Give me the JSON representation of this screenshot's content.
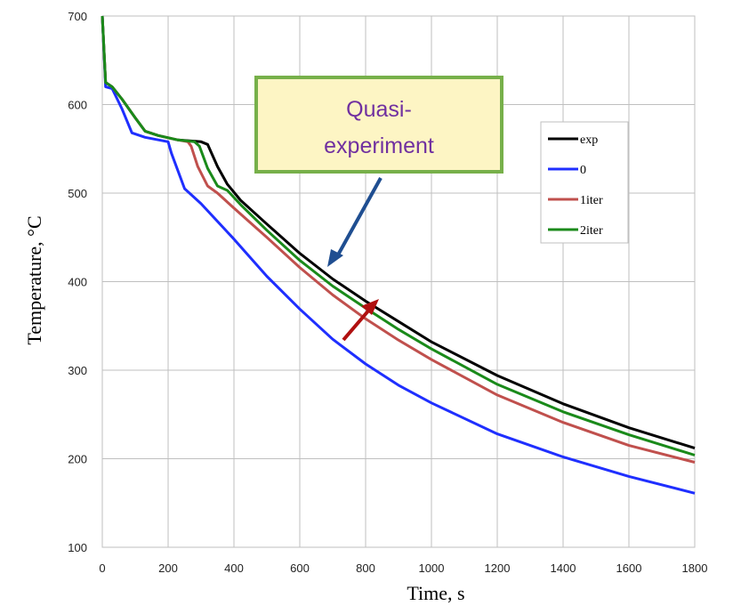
{
  "chart_data": {
    "type": "line",
    "xlabel": "Time, s",
    "ylabel": "Temperature,  °C",
    "xlim": [
      0,
      1800
    ],
    "ylim": [
      100,
      700
    ],
    "xticks": [
      0,
      200,
      400,
      600,
      800,
      1000,
      1200,
      1400,
      1600,
      1800
    ],
    "yticks": [
      100,
      200,
      300,
      400,
      500,
      600,
      700
    ],
    "grid": true,
    "legend_position": "right",
    "series": [
      {
        "name": "exp",
        "color": "#000000",
        "points": [
          [
            0,
            700
          ],
          [
            10,
            625
          ],
          [
            30,
            620
          ],
          [
            60,
            606
          ],
          [
            100,
            585
          ],
          [
            130,
            570
          ],
          [
            170,
            565
          ],
          [
            230,
            560
          ],
          [
            300,
            558
          ],
          [
            320,
            555
          ],
          [
            350,
            530
          ],
          [
            380,
            510
          ],
          [
            420,
            492
          ],
          [
            500,
            465
          ],
          [
            600,
            432
          ],
          [
            700,
            403
          ],
          [
            800,
            378
          ],
          [
            900,
            355
          ],
          [
            1000,
            332
          ],
          [
            1200,
            294
          ],
          [
            1400,
            262
          ],
          [
            1600,
            235
          ],
          [
            1800,
            212
          ]
        ]
      },
      {
        "name": "0",
        "color": "#1f2fff",
        "points": [
          [
            0,
            700
          ],
          [
            10,
            620
          ],
          [
            30,
            618
          ],
          [
            60,
            595
          ],
          [
            90,
            568
          ],
          [
            130,
            563
          ],
          [
            200,
            558
          ],
          [
            210,
            545
          ],
          [
            250,
            505
          ],
          [
            300,
            488
          ],
          [
            400,
            448
          ],
          [
            500,
            406
          ],
          [
            600,
            369
          ],
          [
            700,
            335
          ],
          [
            800,
            307
          ],
          [
            900,
            283
          ],
          [
            1000,
            263
          ],
          [
            1200,
            228
          ],
          [
            1400,
            202
          ],
          [
            1600,
            180
          ],
          [
            1800,
            161
          ]
        ]
      },
      {
        "name": "1iter",
        "color": "#c0504d",
        "points": [
          [
            0,
            700
          ],
          [
            10,
            625
          ],
          [
            30,
            620
          ],
          [
            60,
            606
          ],
          [
            100,
            585
          ],
          [
            130,
            570
          ],
          [
            170,
            565
          ],
          [
            230,
            560
          ],
          [
            260,
            558
          ],
          [
            270,
            553
          ],
          [
            290,
            530
          ],
          [
            320,
            508
          ],
          [
            350,
            500
          ],
          [
            400,
            483
          ],
          [
            500,
            450
          ],
          [
            600,
            416
          ],
          [
            700,
            385
          ],
          [
            800,
            358
          ],
          [
            900,
            334
          ],
          [
            1000,
            312
          ],
          [
            1200,
            272
          ],
          [
            1400,
            241
          ],
          [
            1600,
            215
          ],
          [
            1800,
            196
          ]
        ]
      },
      {
        "name": "2iter",
        "color": "#1a8a1a",
        "points": [
          [
            0,
            700
          ],
          [
            10,
            625
          ],
          [
            30,
            620
          ],
          [
            60,
            606
          ],
          [
            100,
            585
          ],
          [
            130,
            570
          ],
          [
            170,
            565
          ],
          [
            230,
            560
          ],
          [
            280,
            558
          ],
          [
            295,
            553
          ],
          [
            320,
            528
          ],
          [
            350,
            508
          ],
          [
            380,
            503
          ],
          [
            420,
            487
          ],
          [
            500,
            458
          ],
          [
            600,
            424
          ],
          [
            700,
            395
          ],
          [
            800,
            370
          ],
          [
            900,
            346
          ],
          [
            1000,
            324
          ],
          [
            1200,
            284
          ],
          [
            1400,
            253
          ],
          [
            1600,
            227
          ],
          [
            1800,
            204
          ]
        ]
      }
    ],
    "annotations": [
      {
        "text": "Quasi-\nexperiment",
        "lines": [
          "Quasi-",
          "experiment"
        ]
      }
    ]
  },
  "colors": {
    "callout_fill": "#fdf5c4",
    "callout_border": "#77b04a",
    "callout_text": "#7030a0",
    "blue_arrow": "#1f4e91",
    "red_arrow": "#b01010",
    "grid": "#bfbfbf"
  }
}
